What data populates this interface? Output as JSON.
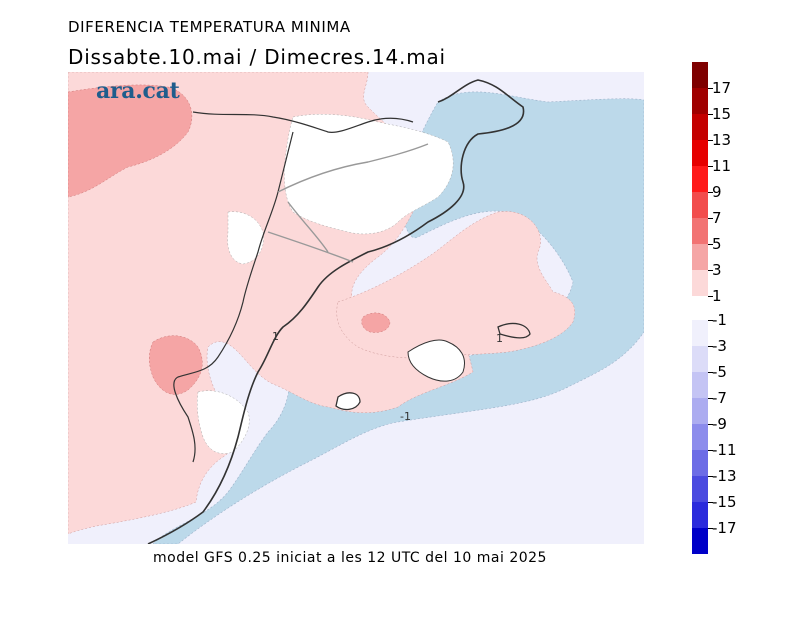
{
  "header": {
    "title": "DIFERENCIA TEMPERATURA MINIMA",
    "subtitle": "Dissabte.10.mai  /  Dimecres.14.mai"
  },
  "footer": {
    "caption": "model GFS 0.25 iniciat a les 12 UTC del 10 mai 2025"
  },
  "map": {
    "logo": "ara.cat",
    "contour_labels": [
      "1",
      "1",
      "-1"
    ]
  },
  "colorbar": {
    "positive": [
      {
        "label": "17",
        "color": "#7f0000"
      },
      {
        "label": "15",
        "color": "#a00000"
      },
      {
        "label": "13",
        "color": "#c40000"
      },
      {
        "label": "11",
        "color": "#e60000"
      },
      {
        "label": "9",
        "color": "#ff1a1a"
      },
      {
        "label": "7",
        "color": "#f24d4d"
      },
      {
        "label": "5",
        "color": "#f27373"
      },
      {
        "label": "3",
        "color": "#f5a5a5"
      },
      {
        "label": "1",
        "color": "#fcd9d9"
      }
    ],
    "negative": [
      {
        "label": "-1",
        "color": "#f0f0fc"
      },
      {
        "label": "-3",
        "color": "#dcdcf8"
      },
      {
        "label": "-5",
        "color": "#c4c4f4"
      },
      {
        "label": "-7",
        "color": "#acacf0"
      },
      {
        "label": "-9",
        "color": "#8c8cec"
      },
      {
        "label": "-11",
        "color": "#6c6ce6"
      },
      {
        "label": "-13",
        "color": "#4a4ae0"
      },
      {
        "label": "-15",
        "color": "#2b2bdc"
      },
      {
        "label": "-17",
        "color": "#0000c8"
      }
    ]
  },
  "colors": {
    "sea_blue": "#bcd9ea",
    "light_pink": "#fcd9d9",
    "mid_pink": "#f5a5a5",
    "pale_lavender": "#f0f0fc"
  }
}
